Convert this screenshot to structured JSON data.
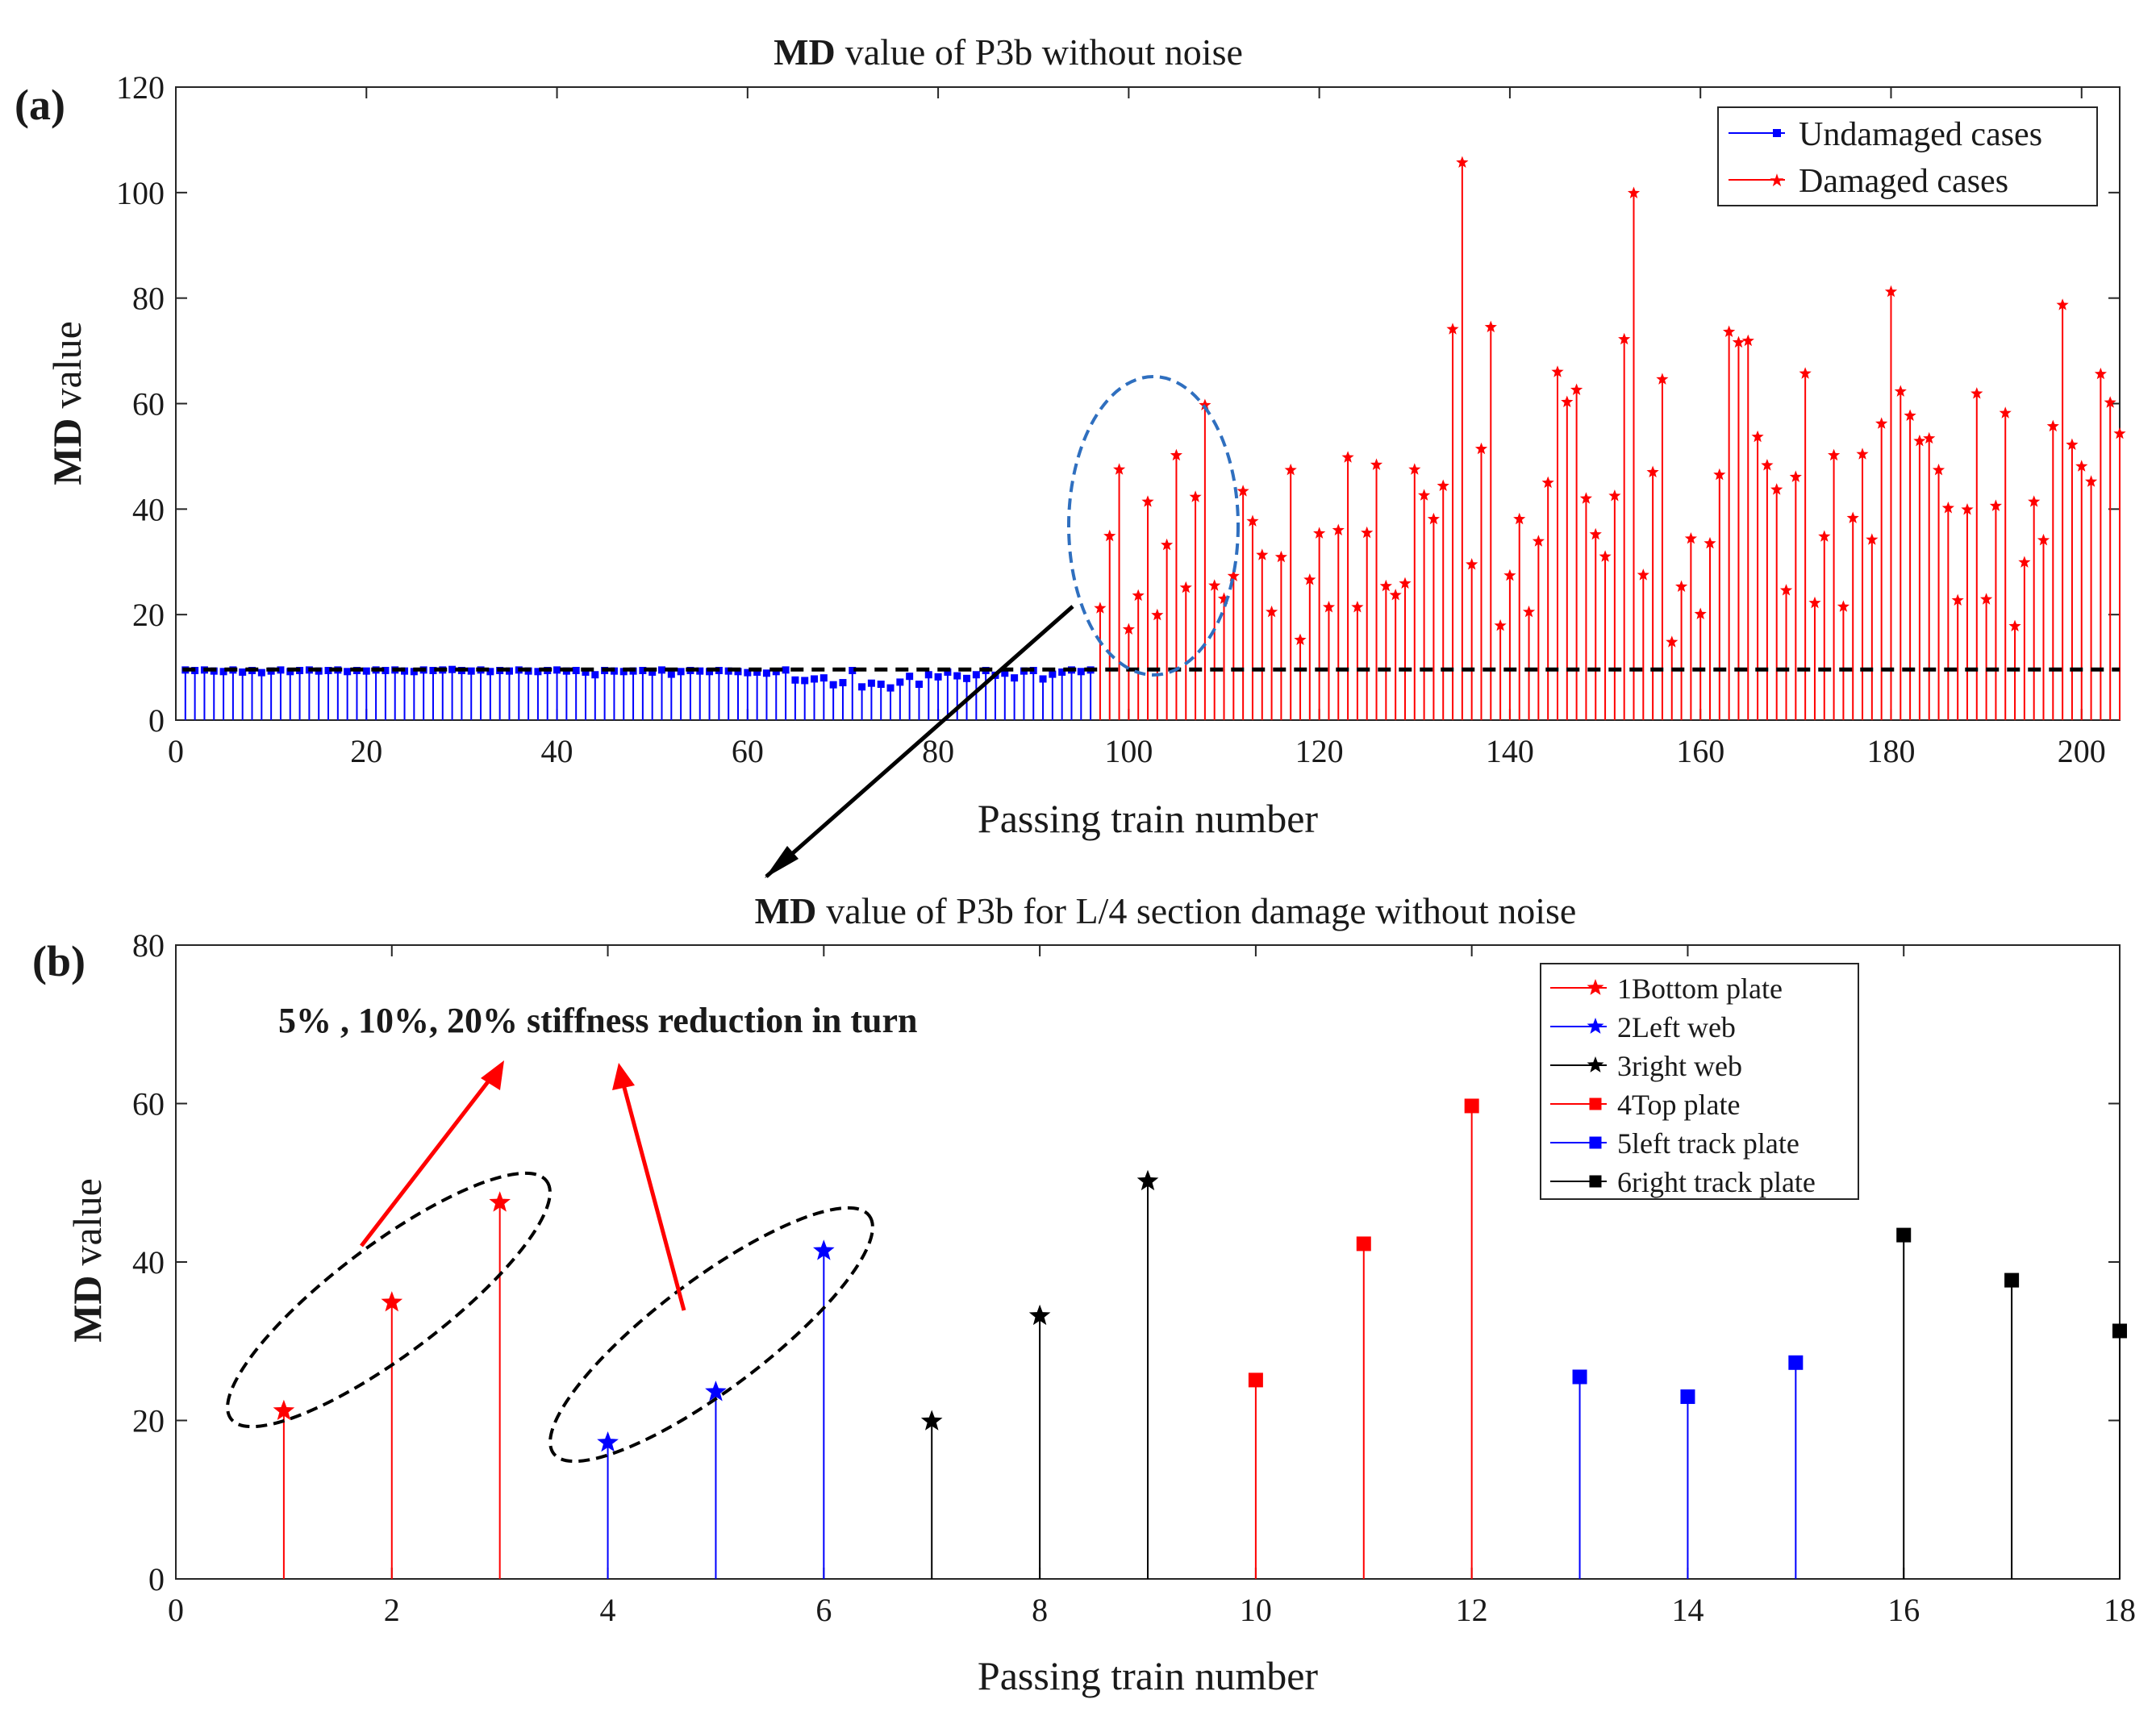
{
  "chart_data": [
    {
      "panel": "(a)",
      "type": "stem",
      "title_bold": "MD",
      "title": "value of  P3b without noise",
      "xlabel": "Passing train number",
      "ylabel_bold": "MD",
      "ylabel": "value",
      "xlim": [
        0,
        204
      ],
      "ylim": [
        0,
        120
      ],
      "xticks": [
        0,
        20,
        40,
        60,
        80,
        100,
        120,
        140,
        160,
        180,
        200
      ],
      "yticks": [
        0,
        20,
        40,
        60,
        80,
        100,
        120
      ],
      "threshold": 9.6,
      "legend": {
        "position": "top-right",
        "entries": [
          "Undamaged cases",
          "Damaged cases"
        ]
      },
      "series": [
        {
          "name": "Undamaged cases",
          "color": "#0000ff",
          "marker": "square",
          "x_start": 1,
          "values": [
            9.5,
            9.4,
            9.5,
            9.3,
            9.2,
            9.5,
            9.1,
            9.4,
            9.0,
            9.3,
            9.5,
            9.2,
            9.4,
            9.5,
            9.3,
            9.4,
            9.5,
            9.2,
            9.4,
            9.3,
            9.5,
            9.4,
            9.5,
            9.3,
            9.2,
            9.5,
            9.4,
            9.5,
            9.6,
            9.4,
            9.3,
            9.5,
            9.2,
            9.4,
            9.3,
            9.5,
            9.3,
            9.2,
            9.4,
            9.5,
            9.3,
            9.4,
            9.1,
            8.6,
            9.4,
            9.3,
            9.2,
            9.3,
            9.4,
            9.1,
            9.5,
            8.7,
            9.2,
            9.4,
            9.3,
            9.2,
            9.4,
            9.3,
            9.2,
            9.0,
            9.1,
            8.9,
            9.2,
            9.5,
            7.6,
            7.5,
            7.8,
            8.0,
            6.7,
            7.1,
            9.4,
            6.3,
            7.0,
            6.8,
            6.1,
            7.2,
            8.3,
            6.8,
            8.6,
            8.2,
            9.1,
            8.4,
            7.9,
            8.6,
            9.4,
            8.5,
            8.9,
            8.0,
            9.3,
            9.4,
            7.8,
            8.7,
            9.1,
            9.5,
            9.2,
            9.5
          ]
        },
        {
          "name": "Damaged cases",
          "color": "#ff0000",
          "marker": "star",
          "x_start": 97,
          "values": [
            21.2,
            34.9,
            47.5,
            17.2,
            23.6,
            41.4,
            19.9,
            33.2,
            50.2,
            25.1,
            42.3,
            59.7,
            25.5,
            23.0,
            27.3,
            43.4,
            37.7,
            31.3,
            20.5,
            30.9,
            47.4,
            15.2,
            26.6,
            35.4,
            21.4,
            36.0,
            49.8,
            21.4,
            35.5,
            48.4,
            25.4,
            23.7,
            25.9,
            47.5,
            42.6,
            38.1,
            44.4,
            74.1,
            105.7,
            29.5,
            51.4,
            74.5,
            17.9,
            27.4,
            38.1,
            20.5,
            33.9,
            45.0,
            66.0,
            60.3,
            62.6,
            42.0,
            35.2,
            31.0,
            42.5,
            72.2,
            99.9,
            27.5,
            47.0,
            64.6,
            14.8,
            25.3,
            34.4,
            20.1,
            33.5,
            46.5,
            73.6,
            71.6,
            71.9,
            53.7,
            48.3,
            43.7,
            24.6,
            46.1,
            65.7,
            22.2,
            34.8,
            50.2,
            21.5,
            38.3,
            50.4,
            34.2,
            56.2,
            81.2,
            62.3,
            57.7,
            52.9,
            53.4,
            47.4,
            40.2,
            22.7,
            39.9,
            61.9,
            22.9,
            40.6,
            58.2,
            17.8,
            29.9,
            41.4,
            34.1,
            55.7,
            78.7,
            52.2,
            48.1,
            45.2,
            65.6,
            60.2,
            54.3
          ]
        }
      ]
    },
    {
      "panel": "(b)",
      "type": "stem",
      "title_bold": "MD",
      "title": "value of  P3b for  L/4 section damage without noise",
      "xlabel": "Passing train number",
      "ylabel_bold": "MD",
      "ylabel": "value",
      "xlim": [
        0,
        18
      ],
      "ylim": [
        0,
        80
      ],
      "xticks": [
        0,
        2,
        4,
        6,
        8,
        10,
        12,
        14,
        16,
        18
      ],
      "yticks": [
        0,
        20,
        40,
        60,
        80
      ],
      "annotation": "5% , 10%, 20% stiffness reduction in turn",
      "legend": {
        "position": "top-right"
      },
      "series": [
        {
          "name": "1Bottom plate",
          "color": "#ff0000",
          "marker": "star",
          "x": [
            1,
            2,
            3
          ],
          "values": [
            21.2,
            34.9,
            47.5
          ]
        },
        {
          "name": "2Left web",
          "color": "#0000ff",
          "marker": "star",
          "x": [
            4,
            5,
            6
          ],
          "values": [
            17.2,
            23.6,
            41.4
          ]
        },
        {
          "name": "3right web",
          "color": "#000000",
          "marker": "star",
          "x": [
            7,
            8,
            9
          ],
          "values": [
            19.9,
            33.2,
            50.2
          ]
        },
        {
          "name": "4Top plate",
          "color": "#ff0000",
          "marker": "square",
          "x": [
            10,
            11,
            12
          ],
          "values": [
            25.1,
            42.3,
            59.7
          ]
        },
        {
          "name": "5left track plate",
          "color": "#0000ff",
          "marker": "square",
          "x": [
            13,
            14,
            15
          ],
          "values": [
            25.5,
            23.0,
            27.3
          ]
        },
        {
          "name": "6right track plate",
          "color": "#000000",
          "marker": "square",
          "x": [
            16,
            17,
            18
          ],
          "values": [
            43.4,
            37.7,
            31.3
          ]
        }
      ]
    }
  ]
}
